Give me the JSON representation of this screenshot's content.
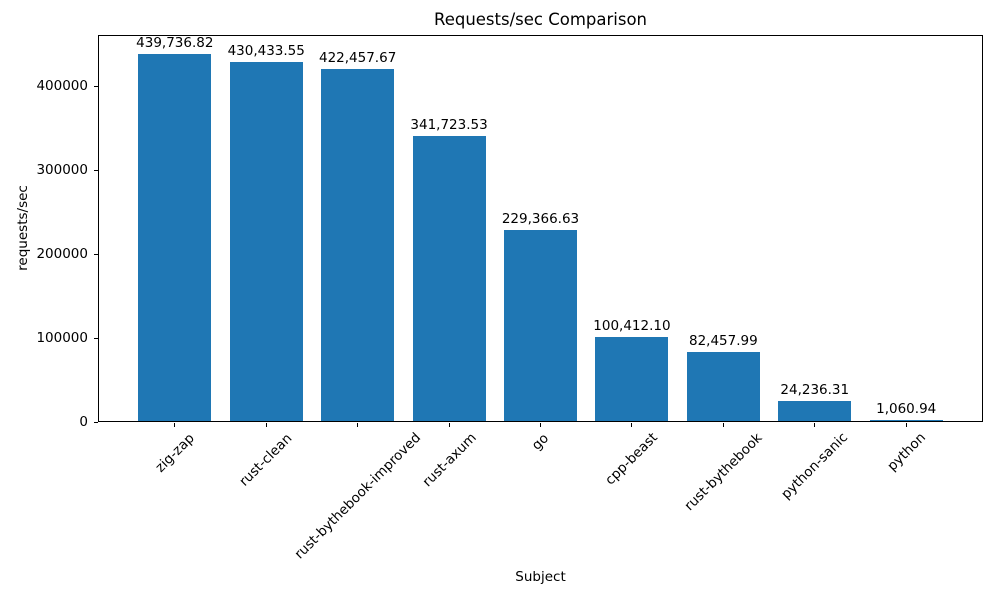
{
  "chart_data": {
    "type": "bar",
    "title": "Requests/sec Comparison",
    "xlabel": "Subject",
    "ylabel": "requests/sec",
    "categories": [
      "zig-zap",
      "rust-clean",
      "rust-bythebook-improved",
      "rust-axum",
      "go",
      "cpp-beast",
      "rust-bythebook",
      "python-sanic",
      "python"
    ],
    "values": [
      439736.82,
      430433.55,
      422457.67,
      341723.53,
      229366.63,
      100412.1,
      82457.99,
      24236.31,
      1060.94
    ],
    "value_labels": [
      "439,736.82",
      "430,433.55",
      "422,457.67",
      "341,723.53",
      "229,366.63",
      "100,412.10",
      "82,457.99",
      "24,236.31",
      "1,060.94"
    ],
    "yticks": [
      0,
      100000,
      200000,
      300000,
      400000
    ],
    "ylim": [
      0,
      461723.66
    ],
    "bar_color": "#1f77b4",
    "text_color": "#000000",
    "grid": false,
    "legend": null,
    "x_tick_rotation_deg": 45
  }
}
